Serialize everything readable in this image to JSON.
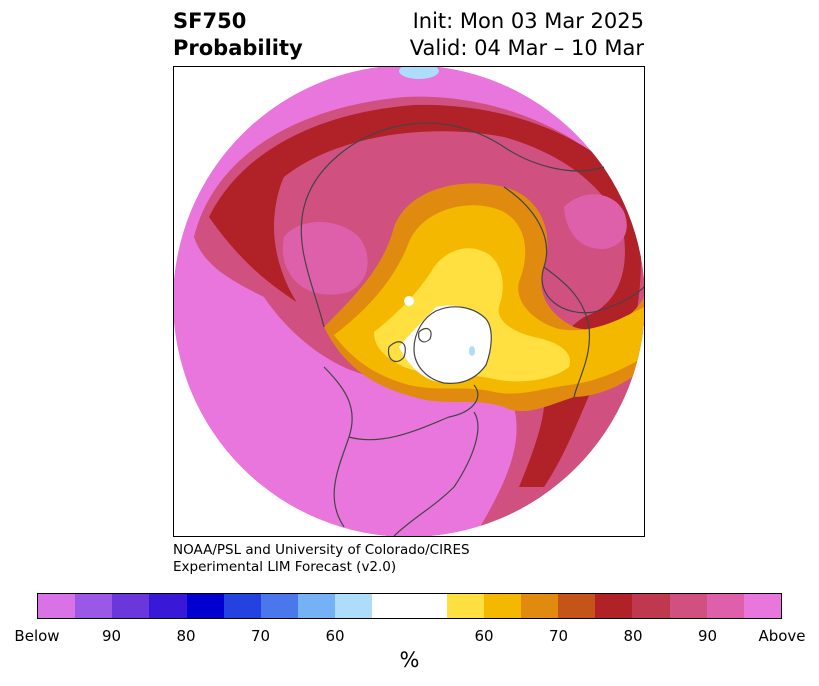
{
  "title": {
    "left_line1": "SF750",
    "left_line2": "Probability",
    "right_line1": "Init: Mon 03 Mar 2025",
    "right_line2": "Valid: 04 Mar – 10 Mar"
  },
  "credit": {
    "line1": "NOAA/PSL and University of Colorado/CIRES",
    "line2": "Experimental LIM Forecast (v2.0)"
  },
  "colorbar": {
    "label": "%",
    "segments": [
      {
        "color": "#d972e6"
      },
      {
        "color": "#9b57e6"
      },
      {
        "color": "#6a37dc"
      },
      {
        "color": "#3a18d8"
      },
      {
        "color": "#0000d0"
      },
      {
        "color": "#2442e0"
      },
      {
        "color": "#4a78ec"
      },
      {
        "color": "#74b2f5"
      },
      {
        "color": "#aedcfb"
      },
      {
        "color": "#ffffff"
      },
      {
        "color": "#ffe040"
      },
      {
        "color": "#f5b800"
      },
      {
        "color": "#e08a10"
      },
      {
        "color": "#c45418"
      },
      {
        "color": "#b02228"
      },
      {
        "color": "#c0384e"
      },
      {
        "color": "#d05080"
      },
      {
        "color": "#de60aa"
      },
      {
        "color": "#e876dc"
      }
    ],
    "ticks": [
      "Below",
      "90",
      "80",
      "70",
      "60",
      "60",
      "70",
      "80",
      "90",
      "Above"
    ]
  },
  "colors": {
    "above_high": "#e876dc",
    "above_mid": "#d05080",
    "above_red": "#b02228",
    "above_orange": "#e08a10",
    "above_yellow": "#f5b800",
    "above_light_yellow": "#ffe040",
    "neutral": "#ffffff",
    "below_light": "#aedcfb",
    "coastline": "#444444"
  }
}
